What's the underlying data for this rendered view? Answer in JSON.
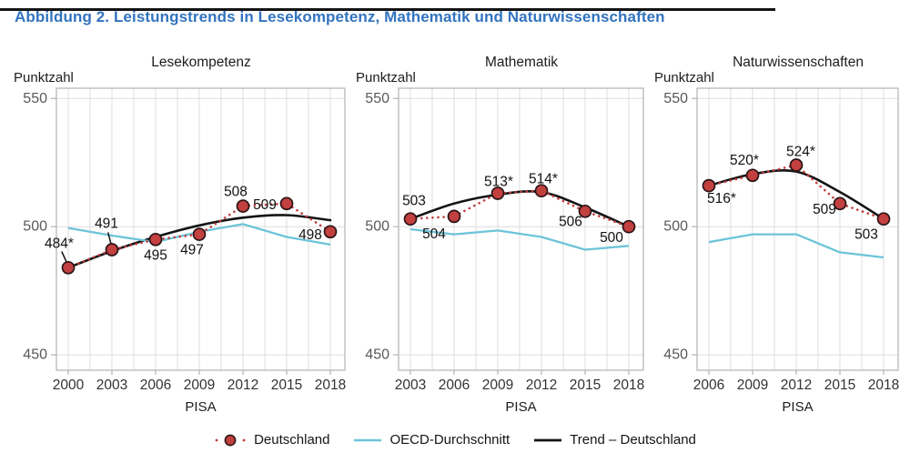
{
  "page": {
    "figure_title": "Abbildung 2. Leistungstrends in Lesekompetenz, Mathematik und Naturwissenschaften"
  },
  "colors": {
    "title_blue": "#3273BF",
    "germany_red": "#C2403F",
    "germany_red_stroke": "#2B1416",
    "germany_dotted": "#C33B3C",
    "oecd_blue": "#6CC4D9",
    "trend_black": "#141414",
    "grid": "#DDDDDD",
    "plot_border": "#BDBDBD",
    "y_tick_label": "#595959",
    "x_tick_label": "#333333",
    "data_label": "#111111",
    "axis_title": "#1d1d1d"
  },
  "legend": {
    "items": [
      {
        "id": "deutschland",
        "label": "Deutschland"
      },
      {
        "id": "oecd-durchschnitt",
        "label": "OECD-Durchschnitt"
      },
      {
        "id": "trend-deutschland",
        "label": "Trend – Deutschland"
      }
    ]
  },
  "chart_data": [
    {
      "type": "line",
      "title": "Lesekompetenz",
      "ylabel": "Punktzahl",
      "xlabel": "PISA",
      "x": [
        2000,
        2003,
        2006,
        2009,
        2012,
        2015,
        2018
      ],
      "y_ticks": [
        550,
        500,
        450
      ],
      "ylim": [
        444,
        554
      ],
      "grid": true,
      "legend_position": "bottom",
      "series": [
        {
          "name": "Deutschland",
          "style": "dotted-markers",
          "values": [
            484,
            491,
            495,
            497,
            508,
            509,
            498
          ],
          "point_labels": [
            "484*",
            "491",
            "495",
            "497",
            "508",
            "509",
            "498"
          ],
          "label_offsets": [
            [
              -10,
              -27
            ],
            [
              -6,
              -29
            ],
            [
              0,
              17
            ],
            [
              -8,
              17
            ],
            [
              -8,
              -16
            ],
            [
              -24,
              1
            ],
            [
              -22,
              3
            ]
          ],
          "leader_lines": [
            true,
            true,
            false,
            false,
            false,
            false,
            false
          ]
        },
        {
          "name": "OECD-Durchschnitt",
          "style": "line",
          "values": [
            499.5,
            496.5,
            494,
            498,
            501,
            496,
            493
          ]
        },
        {
          "name": "Trend – Deutschland",
          "style": "smooth",
          "values": [
            484,
            490.5,
            496,
            500.5,
            503.5,
            504.5,
            502.5
          ]
        }
      ]
    },
    {
      "type": "line",
      "title": "Mathematik",
      "ylabel": "Punktzahl",
      "xlabel": "PISA",
      "x": [
        2003,
        2006,
        2009,
        2012,
        2015,
        2018
      ],
      "y_ticks": [
        550,
        500,
        450
      ],
      "ylim": [
        444,
        554
      ],
      "grid": true,
      "legend_position": "bottom",
      "series": [
        {
          "name": "Deutschland",
          "style": "dotted-markers",
          "values": [
            503,
            504,
            513,
            514,
            506,
            500
          ],
          "point_labels": [
            "503",
            "504",
            "513*",
            "514*",
            "506",
            "500"
          ],
          "label_offsets": [
            [
              4,
              -20
            ],
            [
              -22,
              19
            ],
            [
              1,
              -13
            ],
            [
              2,
              -13
            ],
            [
              -16,
              11
            ],
            [
              -19,
              12
            ]
          ],
          "leader_lines": [
            false,
            false,
            false,
            false,
            false,
            false
          ]
        },
        {
          "name": "OECD-Durchschnitt",
          "style": "line",
          "values": [
            499,
            497,
            498.5,
            496,
            491,
            492.5
          ]
        },
        {
          "name": "Trend – Deutschland",
          "style": "smooth",
          "values": [
            503,
            509,
            512.5,
            513.5,
            507.5,
            500
          ]
        }
      ]
    },
    {
      "type": "line",
      "title": "Naturwissenschaften",
      "ylabel": "Punktzahl",
      "xlabel": "PISA",
      "x": [
        2006,
        2009,
        2012,
        2015,
        2018
      ],
      "y_ticks": [
        550,
        500,
        450
      ],
      "ylim": [
        444,
        554
      ],
      "grid": true,
      "legend_position": "bottom",
      "series": [
        {
          "name": "Deutschland",
          "style": "dotted-markers",
          "values": [
            516,
            520,
            524,
            509,
            503
          ],
          "point_labels": [
            "516*",
            "520*",
            "524*",
            "509",
            "503"
          ],
          "label_offsets": [
            [
              14,
              14
            ],
            [
              -9,
              -17
            ],
            [
              5,
              -15
            ],
            [
              -17,
              6
            ],
            [
              -19,
              17
            ]
          ],
          "leader_lines": [
            false,
            false,
            false,
            false,
            false
          ]
        },
        {
          "name": "OECD-Durchschnitt",
          "style": "line",
          "values": [
            494,
            497,
            497,
            490,
            488
          ]
        },
        {
          "name": "Trend – Deutschland",
          "style": "smooth",
          "values": [
            516,
            520.5,
            521.5,
            513.5,
            503
          ]
        }
      ]
    }
  ]
}
